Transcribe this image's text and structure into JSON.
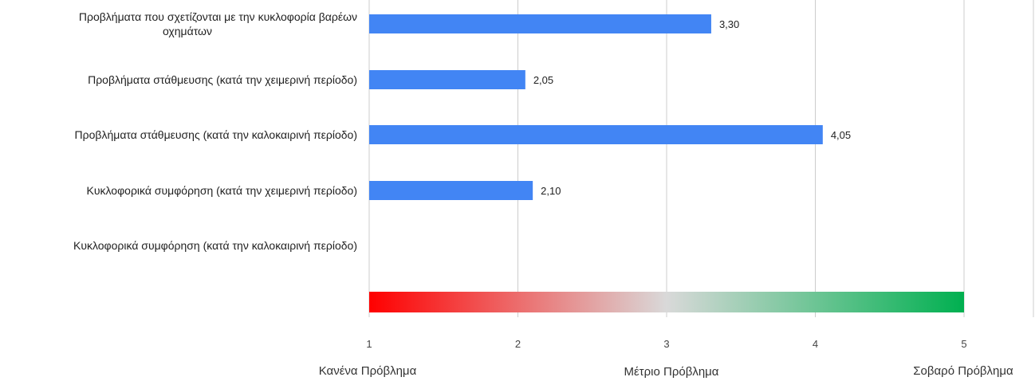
{
  "chart_data": {
    "type": "bar",
    "orientation": "horizontal",
    "categories": [
      [
        "Προβλήματα που σχετίζονται με την κυκλοφορία βαρέων",
        "οχημάτων"
      ],
      [
        "Προβλήματα στάθμευσης (κατά την χειμερινή περίοδο)"
      ],
      [
        "Προβλήματα στάθμευσης (κατά την καλοκαιρινή περίοδο)"
      ],
      [
        "Κυκλοφορικά συμφόρηση (κατά την χειμερινή περίοδο)"
      ],
      [
        "Κυκλοφορικά συμφόρηση (κατά την καλοκαιρινή περίοδο)"
      ]
    ],
    "values": [
      3.3,
      2.05,
      4.05,
      2.1,
      null
    ],
    "value_labels": [
      "3,30",
      "2,05",
      "4,05",
      "2,10",
      ""
    ],
    "xlim": [
      1,
      5
    ],
    "xticks": [
      "1",
      "2",
      "3",
      "4",
      "5"
    ],
    "scale_labels": [
      "Κανένα Πρόβλημα",
      "Μέτριο Πρόβλημα",
      "Σοβαρό Πρόβλημα"
    ],
    "grid": true,
    "colors": {
      "bar": "#4285f4",
      "grid": "#cccccc",
      "gradient": [
        "#ff0000",
        "#d9d9d9",
        "#00b050"
      ]
    }
  }
}
